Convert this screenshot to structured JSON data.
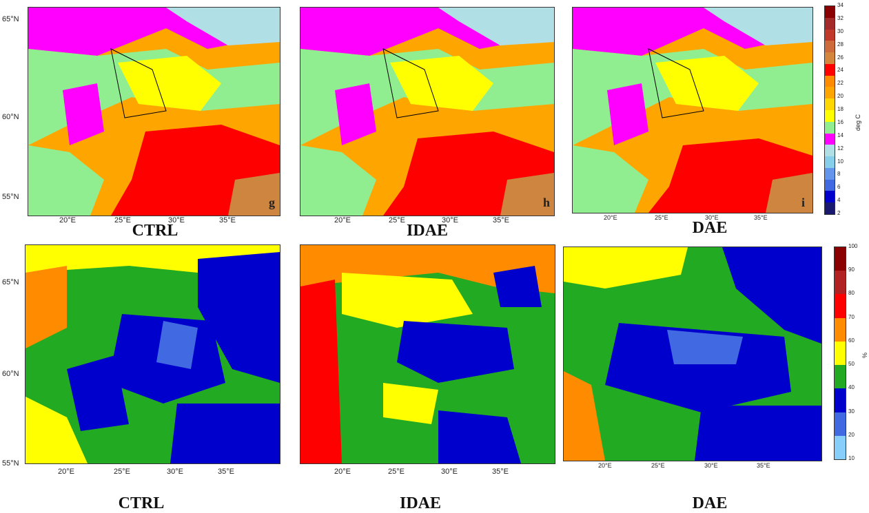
{
  "panels_top": [
    {
      "caption": "CTRL",
      "letter": "g"
    },
    {
      "caption": "IDAE",
      "letter": "h"
    },
    {
      "caption": "DAE",
      "letter": "i"
    }
  ],
  "panels_bottom": [
    {
      "caption": "CTRL"
    },
    {
      "caption": "IDAE"
    },
    {
      "caption": "DAE"
    }
  ],
  "lat_ticks": [
    "65°N",
    "60°N",
    "55°N"
  ],
  "lon_ticks": [
    "20°E",
    "25°E",
    "30°E",
    "35°E"
  ],
  "colorbar_top": {
    "label": "deg C",
    "ticks": [
      "34",
      "32",
      "30",
      "28",
      "26",
      "24",
      "22",
      "20",
      "18",
      "16",
      "14",
      "12",
      "10",
      "8",
      "6",
      "4",
      "2"
    ],
    "colors": [
      "#8b0000",
      "#a52a2a",
      "#c0392b",
      "#cd6b3c",
      "#d4873c",
      "#ff0000",
      "#ff8c00",
      "#ffa500",
      "#ffd700",
      "#ffff00",
      "#90ee90",
      "#ff00ff",
      "#b0e0e6",
      "#87ceeb",
      "#6495ed",
      "#4169e1",
      "#0000cd",
      "#191970"
    ]
  },
  "colorbar_bottom": {
    "label": "%",
    "ticks": [
      "100",
      "90",
      "80",
      "70",
      "60",
      "50",
      "40",
      "30",
      "20",
      "10"
    ],
    "colors": [
      "#8b0000",
      "#b22222",
      "#ff0000",
      "#ff8c00",
      "#ffff00",
      "#22aa22",
      "#0000cd",
      "#4169e1",
      "#87cefa"
    ]
  }
}
